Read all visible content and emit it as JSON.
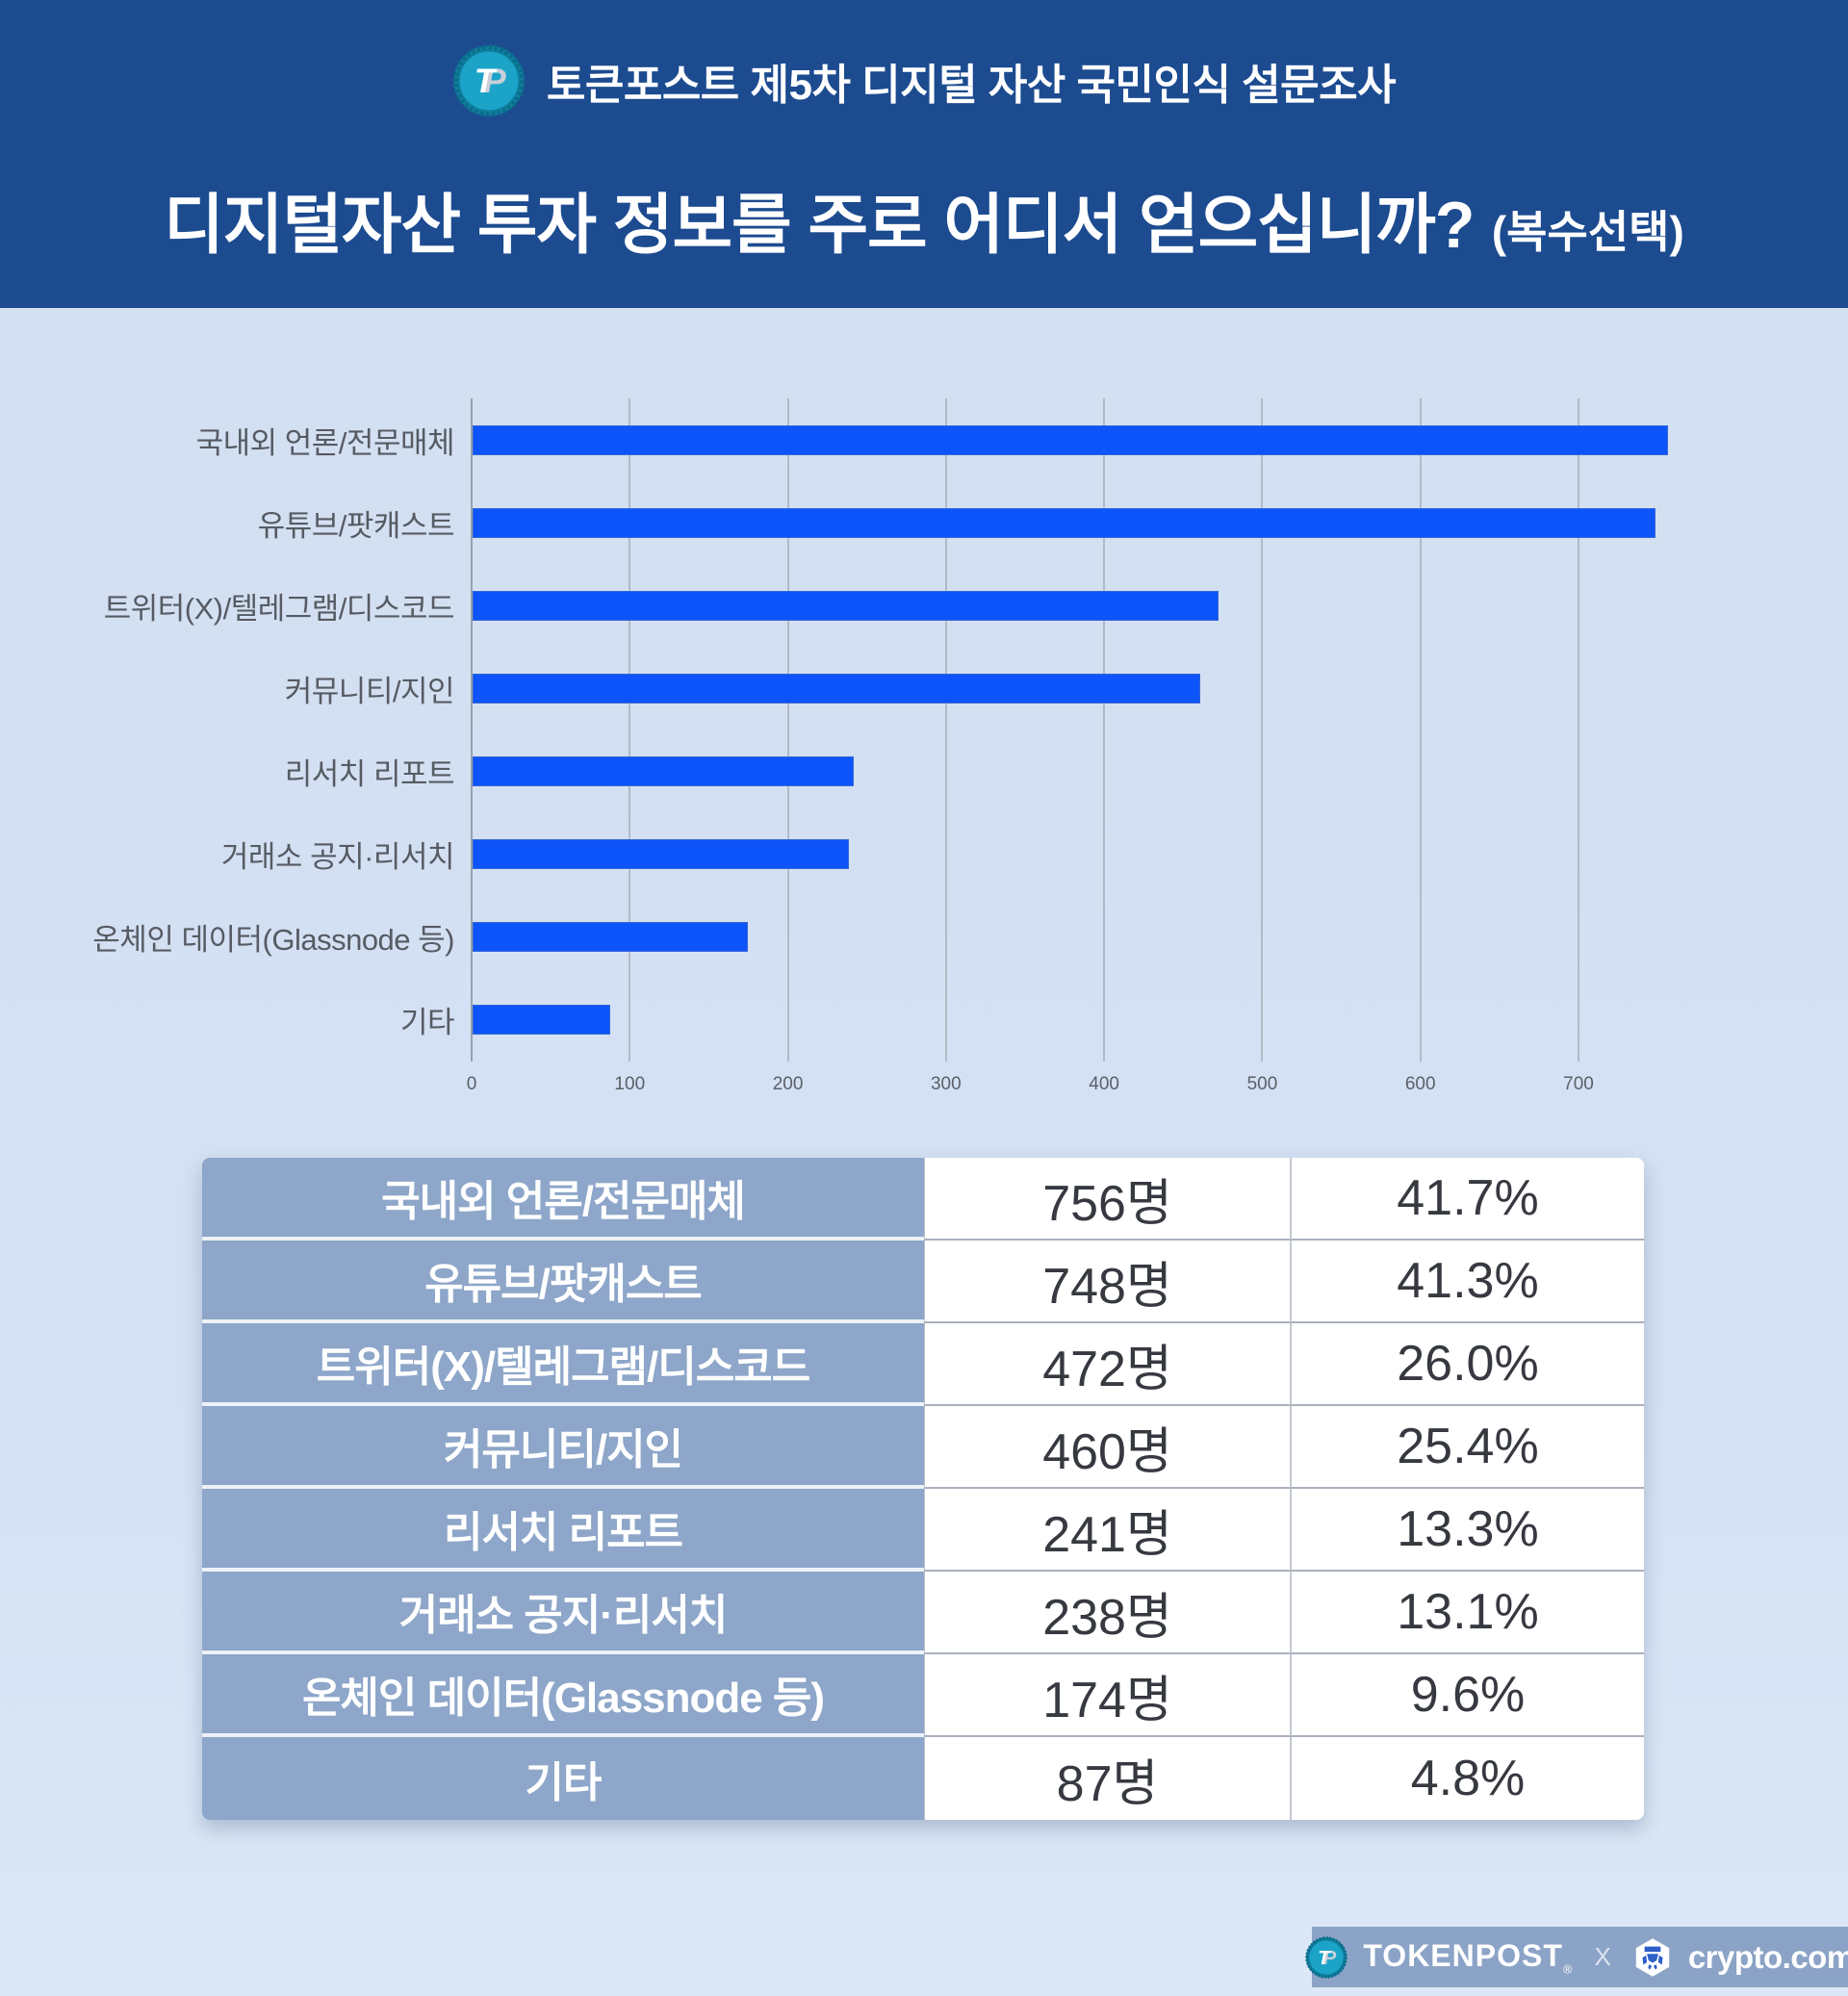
{
  "header": {
    "logo_icon": "tokenpost-coin-icon",
    "survey_title": "토큰포스트 제5차 디지털 자산 국민인식 설문조사",
    "question": "디지털자산 투자 정보를 주로 어디서 얻으십니까?",
    "question_suffix": "(복수선택)"
  },
  "chart_data": {
    "type": "bar",
    "orientation": "horizontal",
    "title": "",
    "categories": [
      "국내외 언론/전문매체",
      "유튜브/팟캐스트",
      "트위터(X)/텔레그램/디스코드",
      "커뮤니티/지인",
      "리서치 리포트",
      "거래소 공지·리서치",
      "온체인 데이터(Glassnode 등)",
      "기타"
    ],
    "values": [
      756,
      748,
      472,
      460,
      241,
      238,
      174,
      87
    ],
    "xlabel": "",
    "ylabel": "",
    "xlim": [
      0,
      764
    ],
    "xticks": [
      0,
      100,
      200,
      300,
      400,
      500,
      600,
      700
    ],
    "grid": true,
    "legend": "none",
    "bar_color": "#0d54fa"
  },
  "table": {
    "rows": [
      {
        "label": "국내외 언론/전문매체",
        "count": "756명",
        "percent": "41.7%"
      },
      {
        "label": "유튜브/팟캐스트",
        "count": "748명",
        "percent": "41.3%"
      },
      {
        "label": "트위터(X)/텔레그램/디스코드",
        "count": "472명",
        "percent": "26.0%"
      },
      {
        "label": "커뮤니티/지인",
        "count": "460명",
        "percent": "25.4%"
      },
      {
        "label": "리서치 리포트",
        "count": "241명",
        "percent": "13.3%"
      },
      {
        "label": "거래소 공지·리서치",
        "count": "238명",
        "percent": "13.1%"
      },
      {
        "label": "온체인 데이터(Glassnode 등)",
        "count": "174명",
        "percent": "9.6%"
      },
      {
        "label": "기타",
        "count": "87명",
        "percent": "4.8%"
      }
    ]
  },
  "footer": {
    "tokenpost_label": "TOKENPOST",
    "registered_mark": "®",
    "separator": "X",
    "crypto_label": "crypto.com"
  },
  "colors": {
    "header_bg": "#1c4b90",
    "page_bg": "#d3e0f2",
    "bar": "#0d54fa",
    "table_label_bg": "#8da6c9",
    "footer_bg": "#8ba3c6",
    "tokenpost_teal": "#1ba4c8",
    "crypto_blue": "#2d5fc7"
  }
}
